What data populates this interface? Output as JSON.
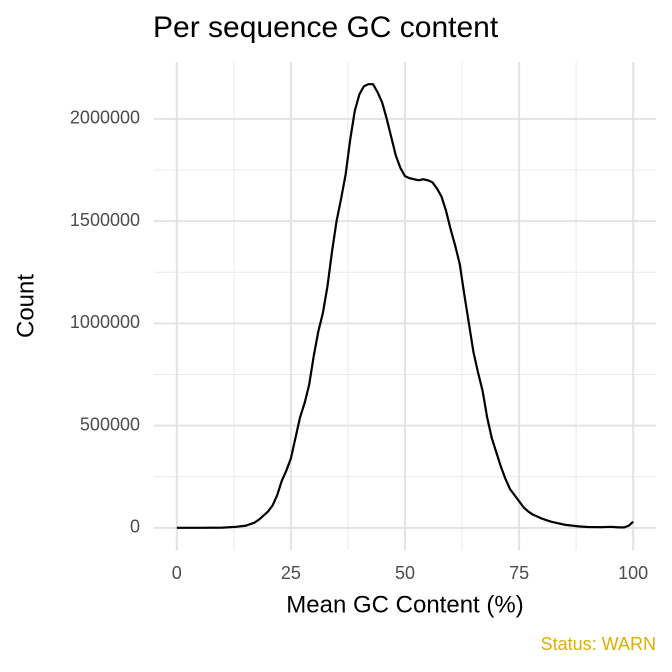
{
  "chart_data": {
    "type": "line",
    "title": "Per sequence GC content",
    "x_label": "Mean GC Content (%)",
    "y_label": "Count",
    "annotation": "Status: WARN",
    "annotation_color": "#e0ae00",
    "x": [
      0,
      5,
      10,
      13,
      15,
      17,
      18,
      20,
      21,
      22,
      23,
      24,
      25,
      26,
      27,
      28,
      29,
      30,
      31,
      32,
      33,
      34,
      35,
      36,
      37,
      38,
      39,
      40,
      41,
      42,
      43,
      44,
      45,
      46,
      47,
      48,
      49,
      50,
      51,
      52,
      53,
      54,
      55,
      56,
      57,
      58,
      59,
      60,
      61,
      62,
      63,
      64,
      65,
      66,
      67,
      68,
      69,
      70,
      71,
      72,
      73,
      74,
      75,
      76,
      77,
      78,
      80,
      82,
      85,
      88,
      90,
      93,
      95,
      97,
      98,
      99,
      100
    ],
    "series": [
      {
        "name": "Count",
        "color": "#000000",
        "values": [
          0,
          0,
          1000,
          5000,
          10000,
          25000,
          40000,
          80000,
          110000,
          160000,
          230000,
          280000,
          340000,
          440000,
          540000,
          610000,
          700000,
          840000,
          960000,
          1050000,
          1180000,
          1350000,
          1500000,
          1610000,
          1730000,
          1900000,
          2040000,
          2120000,
          2160000,
          2170000,
          2170000,
          2130000,
          2080000,
          2000000,
          1910000,
          1820000,
          1760000,
          1720000,
          1710000,
          1705000,
          1700000,
          1705000,
          1700000,
          1690000,
          1660000,
          1620000,
          1550000,
          1460000,
          1380000,
          1290000,
          1140000,
          1000000,
          860000,
          760000,
          670000,
          540000,
          440000,
          370000,
          300000,
          240000,
          190000,
          160000,
          130000,
          100000,
          80000,
          65000,
          45000,
          30000,
          15000,
          7000,
          4000,
          3000,
          5000,
          2000,
          2000,
          10000,
          30000
        ]
      }
    ],
    "xlim": [
      -5,
      105
    ],
    "xticks": [
      0,
      25,
      50,
      75,
      100
    ],
    "xminor": [
      12.5,
      37.5,
      62.5,
      87.5
    ],
    "ylim": [
      -108500,
      2278500
    ],
    "yticks": [
      0,
      500000,
      1000000,
      1500000,
      2000000
    ],
    "yminor": [
      250000,
      750000,
      1250000,
      1750000
    ],
    "grid": true
  }
}
